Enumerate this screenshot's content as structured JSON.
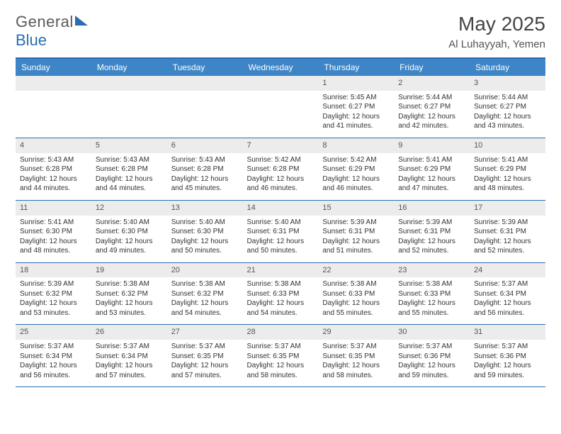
{
  "logo": {
    "text1": "General",
    "text2": "Blue"
  },
  "header": {
    "month_title": "May 2025",
    "location": "Al Luhayyah, Yemen"
  },
  "day_names": [
    "Sunday",
    "Monday",
    "Tuesday",
    "Wednesday",
    "Thursday",
    "Friday",
    "Saturday"
  ],
  "colors": {
    "header_bg": "#3d85c6",
    "header_border": "#2a6db0",
    "daynum_bg": "#ececec",
    "text": "#333333"
  },
  "weeks": [
    [
      {
        "blank": true
      },
      {
        "blank": true
      },
      {
        "blank": true
      },
      {
        "blank": true
      },
      {
        "n": "1",
        "sr": "Sunrise: 5:45 AM",
        "ss": "Sunset: 6:27 PM",
        "d1": "Daylight: 12 hours",
        "d2": "and 41 minutes."
      },
      {
        "n": "2",
        "sr": "Sunrise: 5:44 AM",
        "ss": "Sunset: 6:27 PM",
        "d1": "Daylight: 12 hours",
        "d2": "and 42 minutes."
      },
      {
        "n": "3",
        "sr": "Sunrise: 5:44 AM",
        "ss": "Sunset: 6:27 PM",
        "d1": "Daylight: 12 hours",
        "d2": "and 43 minutes."
      }
    ],
    [
      {
        "n": "4",
        "sr": "Sunrise: 5:43 AM",
        "ss": "Sunset: 6:28 PM",
        "d1": "Daylight: 12 hours",
        "d2": "and 44 minutes."
      },
      {
        "n": "5",
        "sr": "Sunrise: 5:43 AM",
        "ss": "Sunset: 6:28 PM",
        "d1": "Daylight: 12 hours",
        "d2": "and 44 minutes."
      },
      {
        "n": "6",
        "sr": "Sunrise: 5:43 AM",
        "ss": "Sunset: 6:28 PM",
        "d1": "Daylight: 12 hours",
        "d2": "and 45 minutes."
      },
      {
        "n": "7",
        "sr": "Sunrise: 5:42 AM",
        "ss": "Sunset: 6:28 PM",
        "d1": "Daylight: 12 hours",
        "d2": "and 46 minutes."
      },
      {
        "n": "8",
        "sr": "Sunrise: 5:42 AM",
        "ss": "Sunset: 6:29 PM",
        "d1": "Daylight: 12 hours",
        "d2": "and 46 minutes."
      },
      {
        "n": "9",
        "sr": "Sunrise: 5:41 AM",
        "ss": "Sunset: 6:29 PM",
        "d1": "Daylight: 12 hours",
        "d2": "and 47 minutes."
      },
      {
        "n": "10",
        "sr": "Sunrise: 5:41 AM",
        "ss": "Sunset: 6:29 PM",
        "d1": "Daylight: 12 hours",
        "d2": "and 48 minutes."
      }
    ],
    [
      {
        "n": "11",
        "sr": "Sunrise: 5:41 AM",
        "ss": "Sunset: 6:30 PM",
        "d1": "Daylight: 12 hours",
        "d2": "and 48 minutes."
      },
      {
        "n": "12",
        "sr": "Sunrise: 5:40 AM",
        "ss": "Sunset: 6:30 PM",
        "d1": "Daylight: 12 hours",
        "d2": "and 49 minutes."
      },
      {
        "n": "13",
        "sr": "Sunrise: 5:40 AM",
        "ss": "Sunset: 6:30 PM",
        "d1": "Daylight: 12 hours",
        "d2": "and 50 minutes."
      },
      {
        "n": "14",
        "sr": "Sunrise: 5:40 AM",
        "ss": "Sunset: 6:31 PM",
        "d1": "Daylight: 12 hours",
        "d2": "and 50 minutes."
      },
      {
        "n": "15",
        "sr": "Sunrise: 5:39 AM",
        "ss": "Sunset: 6:31 PM",
        "d1": "Daylight: 12 hours",
        "d2": "and 51 minutes."
      },
      {
        "n": "16",
        "sr": "Sunrise: 5:39 AM",
        "ss": "Sunset: 6:31 PM",
        "d1": "Daylight: 12 hours",
        "d2": "and 52 minutes."
      },
      {
        "n": "17",
        "sr": "Sunrise: 5:39 AM",
        "ss": "Sunset: 6:31 PM",
        "d1": "Daylight: 12 hours",
        "d2": "and 52 minutes."
      }
    ],
    [
      {
        "n": "18",
        "sr": "Sunrise: 5:39 AM",
        "ss": "Sunset: 6:32 PM",
        "d1": "Daylight: 12 hours",
        "d2": "and 53 minutes."
      },
      {
        "n": "19",
        "sr": "Sunrise: 5:38 AM",
        "ss": "Sunset: 6:32 PM",
        "d1": "Daylight: 12 hours",
        "d2": "and 53 minutes."
      },
      {
        "n": "20",
        "sr": "Sunrise: 5:38 AM",
        "ss": "Sunset: 6:32 PM",
        "d1": "Daylight: 12 hours",
        "d2": "and 54 minutes."
      },
      {
        "n": "21",
        "sr": "Sunrise: 5:38 AM",
        "ss": "Sunset: 6:33 PM",
        "d1": "Daylight: 12 hours",
        "d2": "and 54 minutes."
      },
      {
        "n": "22",
        "sr": "Sunrise: 5:38 AM",
        "ss": "Sunset: 6:33 PM",
        "d1": "Daylight: 12 hours",
        "d2": "and 55 minutes."
      },
      {
        "n": "23",
        "sr": "Sunrise: 5:38 AM",
        "ss": "Sunset: 6:33 PM",
        "d1": "Daylight: 12 hours",
        "d2": "and 55 minutes."
      },
      {
        "n": "24",
        "sr": "Sunrise: 5:37 AM",
        "ss": "Sunset: 6:34 PM",
        "d1": "Daylight: 12 hours",
        "d2": "and 56 minutes."
      }
    ],
    [
      {
        "n": "25",
        "sr": "Sunrise: 5:37 AM",
        "ss": "Sunset: 6:34 PM",
        "d1": "Daylight: 12 hours",
        "d2": "and 56 minutes."
      },
      {
        "n": "26",
        "sr": "Sunrise: 5:37 AM",
        "ss": "Sunset: 6:34 PM",
        "d1": "Daylight: 12 hours",
        "d2": "and 57 minutes."
      },
      {
        "n": "27",
        "sr": "Sunrise: 5:37 AM",
        "ss": "Sunset: 6:35 PM",
        "d1": "Daylight: 12 hours",
        "d2": "and 57 minutes."
      },
      {
        "n": "28",
        "sr": "Sunrise: 5:37 AM",
        "ss": "Sunset: 6:35 PM",
        "d1": "Daylight: 12 hours",
        "d2": "and 58 minutes."
      },
      {
        "n": "29",
        "sr": "Sunrise: 5:37 AM",
        "ss": "Sunset: 6:35 PM",
        "d1": "Daylight: 12 hours",
        "d2": "and 58 minutes."
      },
      {
        "n": "30",
        "sr": "Sunrise: 5:37 AM",
        "ss": "Sunset: 6:36 PM",
        "d1": "Daylight: 12 hours",
        "d2": "and 59 minutes."
      },
      {
        "n": "31",
        "sr": "Sunrise: 5:37 AM",
        "ss": "Sunset: 6:36 PM",
        "d1": "Daylight: 12 hours",
        "d2": "and 59 minutes."
      }
    ]
  ]
}
